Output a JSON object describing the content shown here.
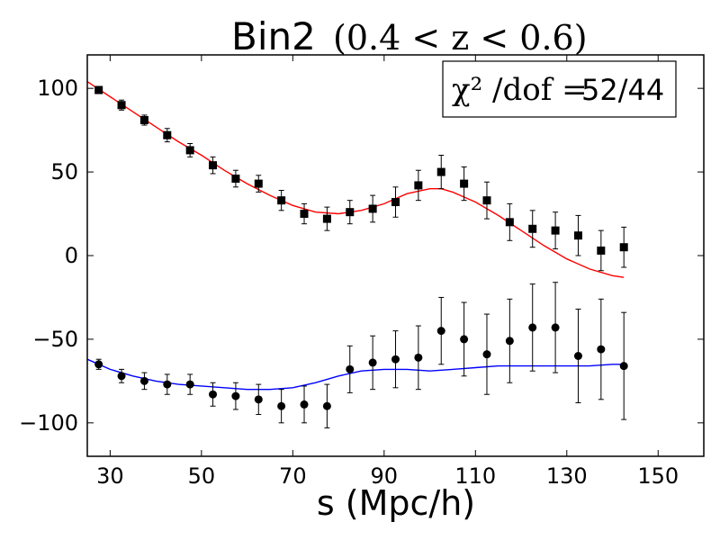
{
  "chart_data": {
    "type": "scatter",
    "title": "Bin2",
    "title_math": "(0.4 < z < 0.6)",
    "xlabel": "s (Mpc/h)",
    "ylabel": "",
    "xlim": [
      25,
      160
    ],
    "ylim": [
      -120,
      120
    ],
    "x_ticks": [
      30,
      50,
      70,
      90,
      110,
      130,
      150
    ],
    "y_ticks": [
      100,
      50,
      0,
      -50,
      -100
    ],
    "y_tick_labels": [
      "100",
      "50",
      "0",
      "−50",
      "−100"
    ],
    "grid": false,
    "legend_box": {
      "math": "χ² /dof =",
      "value": "52/44",
      "placement": "top-right"
    },
    "colors": {
      "upper_model": "#ff0000",
      "lower_model": "#0000ff",
      "data_points": "#000000"
    },
    "series": [
      {
        "kind": "errorbar",
        "marker": "square",
        "x": [
          27.5,
          32.5,
          37.5,
          42.5,
          47.5,
          52.5,
          57.5,
          62.5,
          67.5,
          72.5,
          77.5,
          82.5,
          87.5,
          92.5,
          97.5,
          102.5,
          107.5,
          112.5,
          117.5,
          122.5,
          127.5,
          132.5,
          137.5,
          142.5
        ],
        "y": [
          99,
          90,
          81,
          72,
          63,
          54,
          46,
          43,
          33,
          25,
          22,
          26,
          28,
          32,
          42,
          50,
          43,
          33,
          20,
          16,
          15,
          12,
          3,
          5
        ],
        "err": [
          2,
          3,
          3,
          4,
          4,
          5,
          5,
          5,
          6,
          6,
          7,
          7,
          8,
          9,
          9,
          10,
          10,
          11,
          11,
          11,
          11,
          12,
          12,
          12
        ]
      },
      {
        "kind": "line",
        "x": [
          25,
          30,
          35,
          40,
          45,
          50,
          55,
          60,
          65,
          70,
          75,
          80,
          85,
          90,
          95,
          100,
          102.5,
          105,
          110,
          115,
          120,
          125,
          130,
          135,
          140,
          142.5
        ],
        "y": [
          104,
          95,
          86,
          77,
          68,
          60,
          51,
          43,
          36,
          30,
          26,
          25,
          27,
          31,
          37,
          40,
          40,
          38,
          32,
          24,
          15,
          6,
          -2,
          -8,
          -12,
          -13
        ]
      },
      {
        "kind": "errorbar",
        "marker": "circle",
        "x": [
          27.5,
          32.5,
          37.5,
          42.5,
          47.5,
          52.5,
          57.5,
          62.5,
          67.5,
          72.5,
          77.5,
          82.5,
          87.5,
          92.5,
          97.5,
          102.5,
          107.5,
          112.5,
          117.5,
          122.5,
          127.5,
          132.5,
          137.5,
          142.5
        ],
        "y": [
          -65,
          -72,
          -75,
          -77,
          -77,
          -83,
          -84,
          -86,
          -90,
          -89,
          -90,
          -68,
          -64,
          -62,
          -61,
          -45,
          -50,
          -59,
          -51,
          -43,
          -43,
          -60,
          -56,
          -66
        ],
        "err": [
          3,
          4,
          5,
          6,
          6,
          7,
          8,
          9,
          10,
          11,
          13,
          14,
          16,
          17,
          19,
          20,
          22,
          24,
          25,
          26,
          27,
          28,
          30,
          32
        ]
      },
      {
        "kind": "line",
        "x": [
          25,
          30,
          35,
          40,
          45,
          50,
          55,
          60,
          65,
          70,
          75,
          80,
          85,
          90,
          95,
          100,
          105,
          110,
          115,
          120,
          125,
          130,
          135,
          140,
          142.5
        ],
        "y": [
          -62,
          -68,
          -72,
          -75,
          -77,
          -78,
          -79,
          -80,
          -80,
          -79,
          -76,
          -72,
          -69,
          -68,
          -68,
          -69,
          -68,
          -67,
          -66,
          -66,
          -66,
          -66,
          -66,
          -65,
          -65
        ]
      }
    ]
  }
}
